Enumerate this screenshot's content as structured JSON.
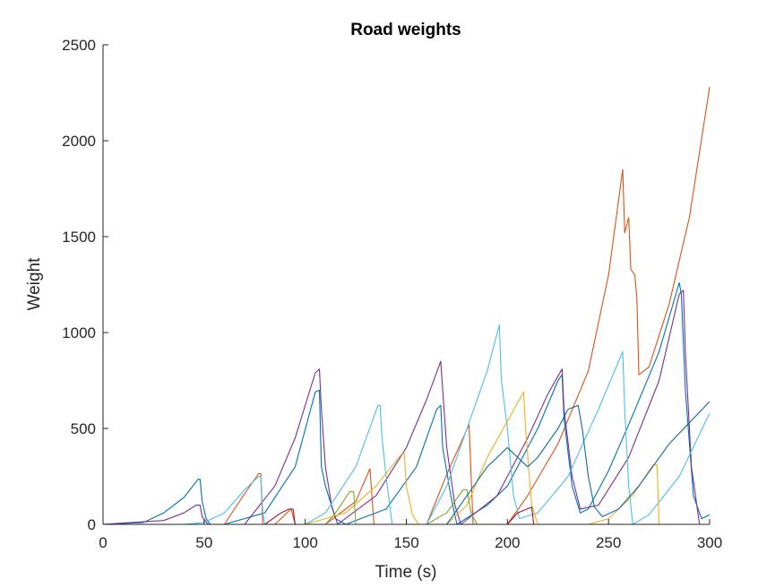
{
  "chart_data": {
    "type": "line",
    "title": "Road weights",
    "xlabel": "Time (s)",
    "ylabel": "Weight",
    "xlim": [
      0,
      300
    ],
    "ylim": [
      0,
      2500
    ],
    "xticks": [
      0,
      50,
      100,
      150,
      200,
      250,
      300
    ],
    "xtick_labels": [
      "0",
      "50",
      "100",
      "150",
      "200",
      "250",
      "300"
    ],
    "yticks": [
      0,
      500,
      1000,
      1500,
      2000,
      2500
    ],
    "ytick_labels": [
      "0",
      "500",
      "1000",
      "1500",
      "2000",
      "2500"
    ],
    "grid": false,
    "legend": "none",
    "series": [
      {
        "color": "#D95319",
        "values": [
          [
            0,
            0
          ],
          [
            60,
            0
          ],
          [
            70,
            160
          ],
          [
            77,
            265
          ],
          [
            78,
            265
          ],
          [
            79,
            0
          ],
          [
            85,
            0
          ],
          [
            93,
            80
          ],
          [
            95,
            0
          ],
          [
            110,
            0
          ],
          [
            125,
            120
          ],
          [
            132,
            290
          ],
          [
            134,
            0
          ],
          [
            160,
            0
          ],
          [
            170,
            260
          ],
          [
            181,
            520
          ],
          [
            183,
            0
          ],
          [
            200,
            0
          ],
          [
            210,
            150
          ],
          [
            225,
            420
          ],
          [
            240,
            800
          ],
          [
            250,
            1300
          ],
          [
            257,
            1850
          ],
          [
            258,
            1520
          ],
          [
            260,
            1600
          ],
          [
            261,
            1330
          ],
          [
            263,
            1300
          ],
          [
            264,
            1180
          ],
          [
            265,
            780
          ],
          [
            270,
            820
          ],
          [
            280,
            1150
          ],
          [
            290,
            1600
          ],
          [
            300,
            2280
          ]
        ]
      },
      {
        "color": "#0072BD",
        "values": [
          [
            0,
            0
          ],
          [
            20,
            10
          ],
          [
            30,
            60
          ],
          [
            40,
            140
          ],
          [
            47,
            235
          ],
          [
            48,
            235
          ],
          [
            49,
            120
          ],
          [
            51,
            30
          ],
          [
            53,
            0
          ],
          [
            60,
            0
          ],
          [
            80,
            60
          ],
          [
            95,
            300
          ],
          [
            105,
            690
          ],
          [
            107,
            700
          ],
          [
            108,
            300
          ],
          [
            110,
            200
          ],
          [
            115,
            30
          ],
          [
            120,
            0
          ],
          [
            140,
            80
          ],
          [
            155,
            300
          ],
          [
            165,
            600
          ],
          [
            167,
            620
          ],
          [
            168,
            400
          ],
          [
            172,
            150
          ],
          [
            175,
            0
          ],
          [
            190,
            100
          ],
          [
            200,
            200
          ],
          [
            215,
            500
          ],
          [
            225,
            750
          ],
          [
            227,
            780
          ],
          [
            228,
            550
          ],
          [
            232,
            200
          ],
          [
            236,
            60
          ],
          [
            240,
            80
          ],
          [
            250,
            280
          ],
          [
            260,
            520
          ],
          [
            275,
            900
          ],
          [
            285,
            1260
          ],
          [
            286,
            1200
          ],
          [
            288,
            700
          ],
          [
            292,
            150
          ],
          [
            296,
            30
          ],
          [
            300,
            50
          ]
        ]
      },
      {
        "color": "#7E2F8E",
        "values": [
          [
            0,
            0
          ],
          [
            30,
            20
          ],
          [
            40,
            60
          ],
          [
            46,
            100
          ],
          [
            48,
            100
          ],
          [
            49,
            40
          ],
          [
            52,
            0
          ],
          [
            70,
            0
          ],
          [
            85,
            200
          ],
          [
            95,
            450
          ],
          [
            105,
            790
          ],
          [
            107,
            810
          ],
          [
            108,
            600
          ],
          [
            110,
            300
          ],
          [
            113,
            100
          ],
          [
            116,
            0
          ],
          [
            135,
            150
          ],
          [
            150,
            400
          ],
          [
            160,
            650
          ],
          [
            167,
            850
          ],
          [
            168,
            700
          ],
          [
            170,
            400
          ],
          [
            174,
            100
          ],
          [
            177,
            0
          ],
          [
            195,
            150
          ],
          [
            210,
            450
          ],
          [
            220,
            680
          ],
          [
            227,
            810
          ],
          [
            228,
            600
          ],
          [
            232,
            250
          ],
          [
            236,
            80
          ],
          [
            245,
            100
          ],
          [
            260,
            350
          ],
          [
            275,
            750
          ],
          [
            285,
            1200
          ],
          [
            287,
            1220
          ],
          [
            288,
            900
          ],
          [
            291,
            300
          ],
          [
            295,
            0
          ],
          [
            300,
            0
          ]
        ]
      },
      {
        "color": "#4DBEEE",
        "values": [
          [
            0,
            0
          ],
          [
            40,
            0
          ],
          [
            50,
            10
          ],
          [
            60,
            60
          ],
          [
            70,
            180
          ],
          [
            77,
            250
          ],
          [
            78,
            250
          ],
          [
            79,
            60
          ],
          [
            80,
            0
          ],
          [
            100,
            0
          ],
          [
            110,
            60
          ],
          [
            125,
            300
          ],
          [
            136,
            620
          ],
          [
            137,
            620
          ],
          [
            138,
            450
          ],
          [
            140,
            250
          ],
          [
            143,
            0
          ],
          [
            160,
            0
          ],
          [
            170,
            200
          ],
          [
            180,
            500
          ],
          [
            190,
            800
          ],
          [
            196,
            1040
          ],
          [
            197,
            750
          ],
          [
            200,
            500
          ],
          [
            203,
            150
          ],
          [
            206,
            30
          ],
          [
            215,
            60
          ],
          [
            230,
            250
          ],
          [
            245,
            600
          ],
          [
            257,
            900
          ],
          [
            258,
            600
          ],
          [
            260,
            200
          ],
          [
            262,
            0
          ],
          [
            270,
            50
          ],
          [
            285,
            250
          ],
          [
            300,
            580
          ]
        ]
      },
      {
        "color": "#EDB120",
        "values": [
          [
            0,
            0
          ],
          [
            100,
            0
          ],
          [
            120,
            60
          ],
          [
            135,
            200
          ],
          [
            148,
            370
          ],
          [
            149,
            370
          ],
          [
            150,
            200
          ],
          [
            153,
            50
          ],
          [
            156,
            0
          ],
          [
            170,
            0
          ],
          [
            180,
            100
          ],
          [
            190,
            350
          ],
          [
            208,
            690
          ],
          [
            209,
            500
          ],
          [
            212,
            100
          ],
          [
            215,
            0
          ],
          [
            240,
            0
          ],
          [
            250,
            30
          ],
          [
            262,
            150
          ],
          [
            272,
            310
          ],
          [
            274,
            310
          ],
          [
            275,
            0
          ],
          [
            300,
            0
          ]
        ]
      },
      {
        "color": "#77AC30",
        "values": [
          [
            0,
            0
          ],
          [
            110,
            0
          ],
          [
            115,
            60
          ],
          [
            122,
            170
          ],
          [
            124,
            170
          ],
          [
            125,
            0
          ],
          [
            160,
            0
          ],
          [
            170,
            60
          ],
          [
            178,
            180
          ],
          [
            180,
            180
          ],
          [
            182,
            60
          ],
          [
            185,
            0
          ],
          [
            300,
            0
          ]
        ]
      },
      {
        "color": "#A2142F",
        "values": [
          [
            0,
            0
          ],
          [
            80,
            0
          ],
          [
            88,
            60
          ],
          [
            92,
            80
          ],
          [
            94,
            80
          ],
          [
            95,
            0
          ],
          [
            120,
            0
          ],
          [
            200,
            0
          ],
          [
            205,
            60
          ],
          [
            212,
            90
          ],
          [
            213,
            0
          ],
          [
            300,
            0
          ]
        ]
      },
      {
        "color": "#0E6D9E",
        "values": [
          [
            0,
            0
          ],
          [
            170,
            0
          ],
          [
            180,
            150
          ],
          [
            190,
            300
          ],
          [
            200,
            400
          ],
          [
            210,
            300
          ],
          [
            215,
            350
          ],
          [
            225,
            500
          ],
          [
            230,
            600
          ],
          [
            235,
            620
          ],
          [
            237,
            500
          ],
          [
            240,
            250
          ],
          [
            243,
            90
          ],
          [
            247,
            40
          ],
          [
            255,
            80
          ],
          [
            265,
            200
          ],
          [
            280,
            420
          ],
          [
            300,
            640
          ]
        ]
      }
    ]
  }
}
